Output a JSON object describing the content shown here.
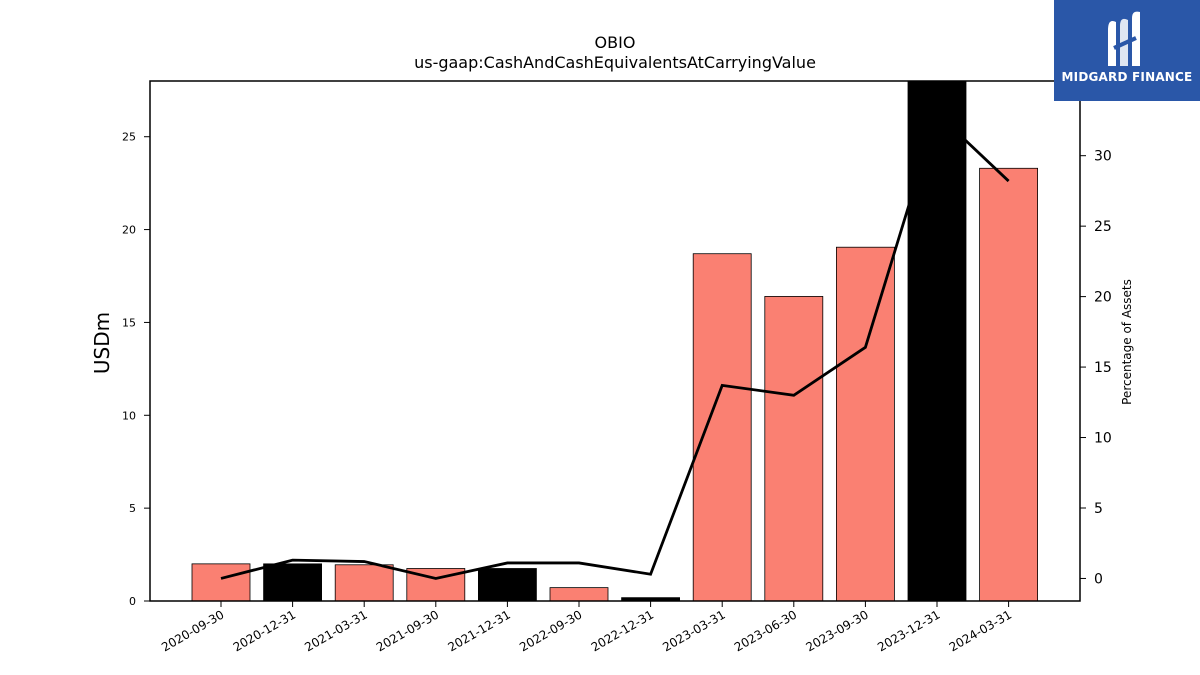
{
  "chart_data": {
    "type": "bar",
    "title": "OBIO",
    "subtitle": "us-gaap:CashAndCashEquivalentsAtCarryingValue",
    "ylabel": "USDm",
    "y2label": "Percentage of Assets",
    "categories": [
      "2020-09-30",
      "2020-12-31",
      "2021-03-31",
      "2021-09-30",
      "2021-12-31",
      "2022-09-30",
      "2022-12-31",
      "2023-03-31",
      "2023-06-30",
      "2023-09-30",
      "2023-12-31",
      "2024-03-31"
    ],
    "series": [
      {
        "values": [
          2.0,
          2.0,
          1.95,
          1.75,
          1.75,
          0.72,
          0.18,
          18.7,
          16.4,
          19.05,
          28.0,
          23.3
        ],
        "bar_colors": [
          "#fa8072",
          "#000000",
          "#fa8072",
          "#fa8072",
          "#000000",
          "#fa8072",
          "#000000",
          "#fa8072",
          "#fa8072",
          "#fa8072",
          "#000000",
          "#fa8072"
        ]
      },
      {
        "axis": "right",
        "type": "line",
        "values": [
          0.0,
          1.3,
          1.2,
          0.0,
          1.1,
          1.1,
          0.3,
          13.7,
          13.0,
          16.4,
          33.0,
          28.2
        ],
        "color": "#000000"
      }
    ],
    "ylim": [
      0,
      28
    ],
    "y2lim": [
      -1.6,
      35.3
    ],
    "yticks": [
      0,
      5,
      10,
      15,
      20,
      25
    ],
    "y2ticks": [
      0,
      5,
      10,
      15,
      20,
      25,
      30
    ],
    "grid": false
  },
  "logo": {
    "text": "MIDGARD FINANCE",
    "color": "#2a57a8"
  }
}
